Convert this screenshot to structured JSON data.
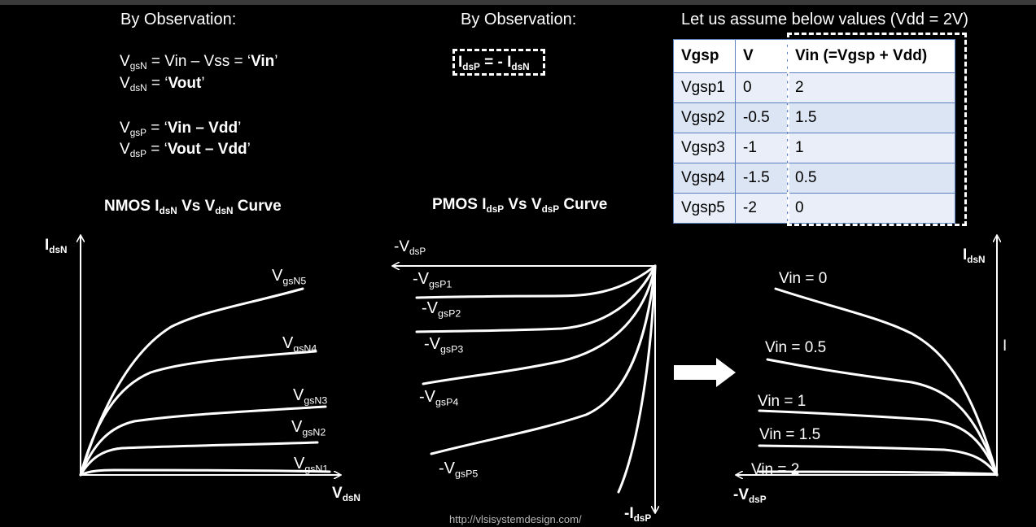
{
  "left_panel": {
    "heading": "By Observation:",
    "eq1": {
      "v": "V",
      "sub": "gsN",
      "rest": " = Vin – Vss = ‘",
      "bold": "Vin",
      "end": "’"
    },
    "eq2": {
      "v": "V",
      "sub": "dsN",
      "rest": " = ‘",
      "bold": "Vout",
      "end": "’"
    },
    "eq3": {
      "v": "V",
      "sub": "gsP",
      "rest": " = ‘",
      "bold": "Vin – Vdd",
      "end": "’"
    },
    "eq4": {
      "v": "V",
      "sub": "dsP",
      "rest": " = ‘",
      "bold": "Vout – Vdd",
      "end": "’"
    }
  },
  "mid_panel": {
    "heading": "By Observation:",
    "boxed_eq": {
      "i1": "I",
      "s1": "dsP",
      "mid": " = - I",
      "s2": "dsN"
    }
  },
  "right_panel": {
    "heading": "Let us assume below values (Vdd = 2V)",
    "table": {
      "headers": [
        "Vgsp",
        "V",
        "Vin (=Vgsp + Vdd)"
      ],
      "rows": [
        [
          "Vgsp1",
          "0",
          "2"
        ],
        [
          "Vgsp2",
          "-0.5",
          "1.5"
        ],
        [
          "Vgsp3",
          "-1",
          "1"
        ],
        [
          "Vgsp4",
          "-1.5",
          "0.5"
        ],
        [
          "Vgsp5",
          "-2",
          "0"
        ]
      ]
    }
  },
  "nmos_chart": {
    "title": {
      "a": "NMOS I",
      "s1": "dsN",
      "b": " Vs V",
      "s2": "dsN",
      "c": " Curve"
    },
    "y_axis": {
      "main": "I",
      "sub": "dsN"
    },
    "x_axis": {
      "main": "V",
      "sub": "dsN"
    },
    "curves": [
      {
        "main": "V",
        "sub": "gsN5"
      },
      {
        "main": "V",
        "sub": "gsN4"
      },
      {
        "main": "V",
        "sub": "gsN3"
      },
      {
        "main": "V",
        "sub": "gsN2"
      },
      {
        "main": "V",
        "sub": "gsN1"
      }
    ]
  },
  "pmos_chart": {
    "title": {
      "a": "PMOS I",
      "s1": "dsP",
      "b": " Vs V",
      "s2": "dsP",
      "c": " Curve"
    },
    "x_axis": {
      "main": "-V",
      "sub": "dsP"
    },
    "y_axis": {
      "main": "-I",
      "sub": "dsP"
    },
    "curves": [
      {
        "main": "-V",
        "sub": "gsP1"
      },
      {
        "main": "-V",
        "sub": "gsP2"
      },
      {
        "main": "-V",
        "sub": "gsP3"
      },
      {
        "main": "-V",
        "sub": "gsP4"
      },
      {
        "main": "-V",
        "sub": "gsP5"
      }
    ]
  },
  "transformed_chart": {
    "y_axis": {
      "main": "I",
      "sub": "dsN"
    },
    "x_axis": {
      "main": "-V",
      "sub": "dsP"
    },
    "curves": [
      "Vin = 0",
      "Vin = 0.5",
      "Vin = 1",
      "Vin = 1.5",
      "Vin = 2"
    ],
    "side_mark": "I"
  },
  "arrow_icon": "right-arrow-icon",
  "footer": "http://vlsisystemdesign.com/"
}
